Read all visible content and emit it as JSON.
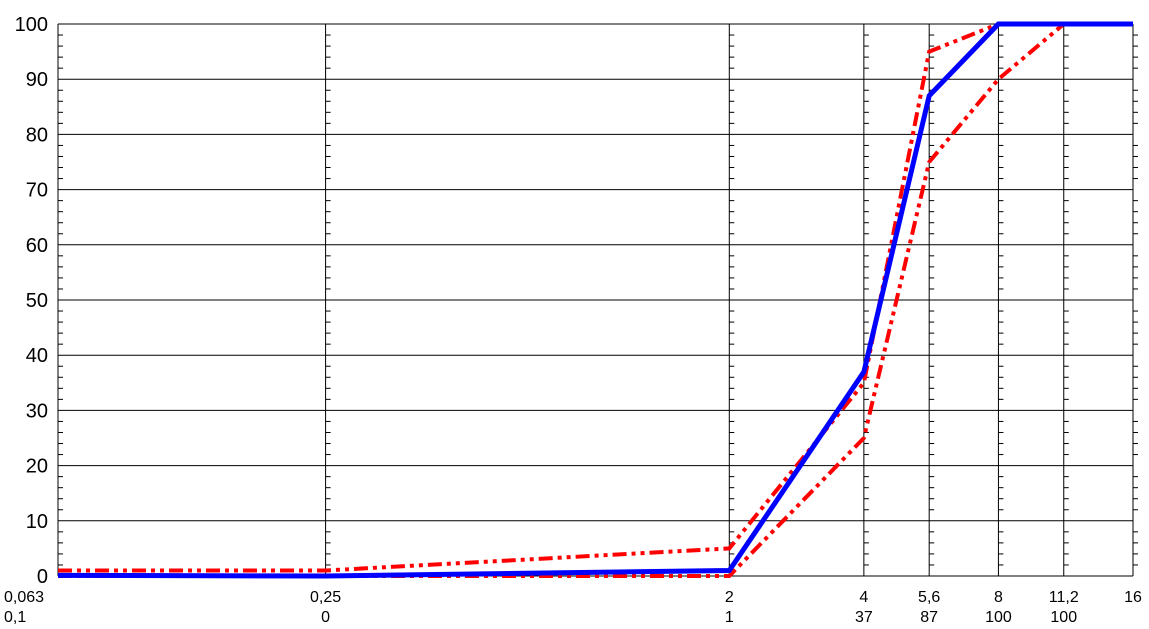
{
  "chart_data": {
    "type": "line",
    "title": "",
    "xlabel": "",
    "ylabel": "",
    "x_scale": "log",
    "x_sieves": [
      0.063,
      0.25,
      2,
      4,
      5.6,
      8,
      11.2,
      16
    ],
    "x_tick_labels": [
      "0,063",
      "0,25",
      "2",
      "4",
      "5,6",
      "8",
      "11,2",
      "16"
    ],
    "x_value_labels": [
      "0,1",
      "0",
      "1",
      "37",
      "87",
      "100",
      "100",
      ""
    ],
    "ylim": [
      0,
      100
    ],
    "y_ticks": [
      0,
      10,
      20,
      30,
      40,
      50,
      60,
      70,
      80,
      90,
      100
    ],
    "grid": true,
    "series": [
      {
        "style": "solid",
        "color": "#0000ff",
        "x": [
          0.063,
          0.25,
          2,
          4,
          5.6,
          8,
          11.2,
          16
        ],
        "values": [
          0.1,
          0,
          1,
          37,
          87,
          100,
          100,
          100
        ]
      },
      {
        "style": "dash-dot-dot",
        "color": "#ff0000",
        "x": [
          0.063,
          0.25,
          2,
          4,
          5.6,
          8,
          11.2,
          16
        ],
        "values": [
          1,
          1,
          5,
          35,
          95,
          100,
          100,
          100
        ]
      },
      {
        "style": "dash-dot-dot",
        "color": "#ff0000",
        "x": [
          0.063,
          0.25,
          2,
          4,
          5.6,
          8,
          11.2,
          16
        ],
        "values": [
          0,
          0,
          0,
          25,
          75,
          90,
          100,
          100
        ]
      }
    ]
  }
}
